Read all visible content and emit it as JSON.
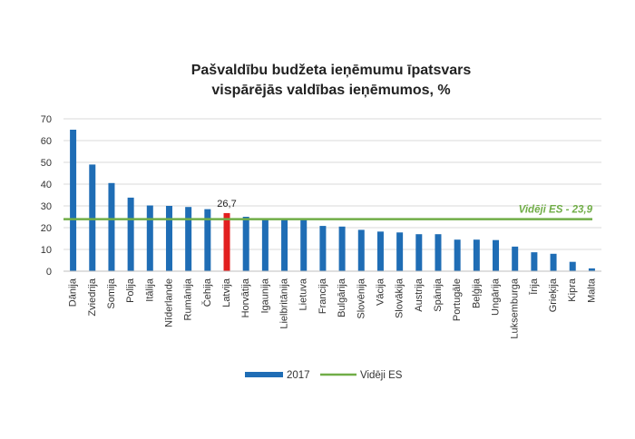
{
  "chart_data": {
    "type": "bar",
    "title_lines": [
      "Pašvaldību budžeta ieņēmumu īpatsvars",
      "vispārējās valdības ieņēmumos, %"
    ],
    "categories": [
      "Dānija",
      "Zviedrija",
      "Somija",
      "Polija",
      "Itālija",
      "Nīderlande",
      "Rumānija",
      "Čehija",
      "Latvija",
      "Horvātija",
      "Igaunija",
      "Lielbritānija",
      "Lietuva",
      "Francija",
      "Bulgārija",
      "Slovēnija",
      "Vācija",
      "Slovākija",
      "Austrija",
      "Spānija",
      "Portugāle",
      "Beļģija",
      "Ungārija",
      "Luksemburga",
      "Īrija",
      "Grieķija",
      "Kipra",
      "Malta"
    ],
    "series": [
      {
        "name": "2017",
        "values": [
          65,
          49,
          40.5,
          33.8,
          30.2,
          30,
          29.5,
          28.5,
          26.7,
          25,
          24.2,
          24,
          23.5,
          20.8,
          20.5,
          19,
          18.2,
          17.8,
          17,
          17,
          14.5,
          14.5,
          14.3,
          11.3,
          8.7,
          8,
          4.3,
          1.3
        ],
        "color": "#1f6db5"
      }
    ],
    "highlight": {
      "category": "Latvija",
      "color": "#e21f1f",
      "label": "26,7"
    },
    "reference_line": {
      "name": "Vidēji ES",
      "value": 23.9,
      "label": "Vidēji ES - 23,9",
      "color": "#70ad47"
    },
    "ylim": [
      0,
      70
    ],
    "yticks": [
      0,
      10,
      20,
      30,
      40,
      50,
      60,
      70
    ],
    "grid": true,
    "legend_position": "bottom"
  }
}
